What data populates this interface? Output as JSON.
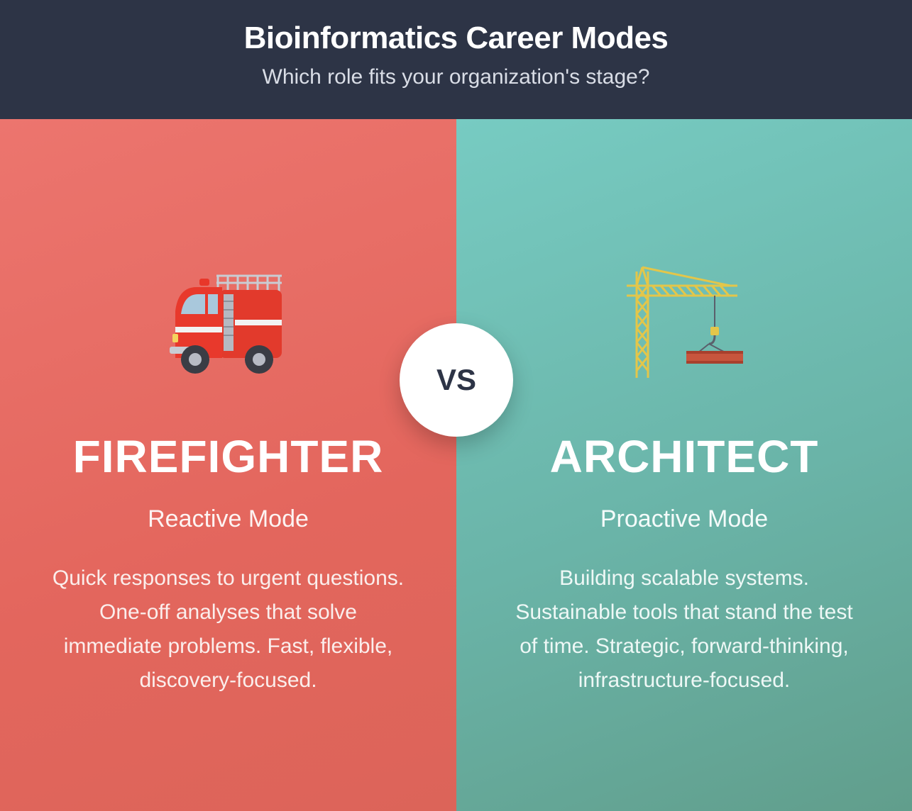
{
  "header": {
    "title": "Bioinformatics Career Modes",
    "subtitle": "Which role fits your organization's stage?"
  },
  "vs_label": "VS",
  "left": {
    "icon": "fire-engine-icon",
    "title": "FIREFIGHTER",
    "mode": "Reactive Mode",
    "description": "Quick responses to urgent questions. One-off analyses that solve immediate problems. Fast, flexible, discovery-focused.",
    "color": "#e56a62"
  },
  "right": {
    "icon": "construction-crane-icon",
    "title": "ARCHITECT",
    "mode": "Proactive Mode",
    "description": "Building scalable systems. Sustainable tools that stand the test of time. Strategic, forward-thinking, infrastructure-focused.",
    "color": "#6ab4a8"
  },
  "colors": {
    "header_bg": "#2d3446",
    "firefighter_panel": "#e56a62",
    "architect_panel": "#6ab4a8"
  }
}
